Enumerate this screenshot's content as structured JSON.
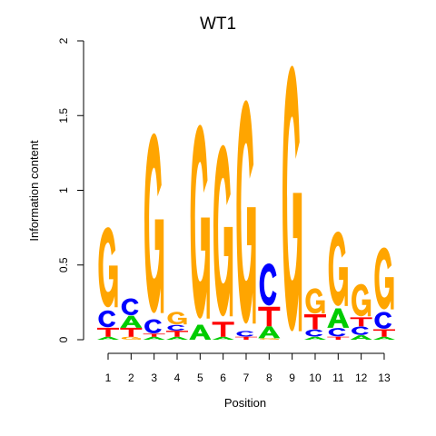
{
  "chart_data": {
    "type": "sequence-logo",
    "title": "WT1",
    "xlabel": "Position",
    "ylabel": "Information content",
    "ylim": [
      0,
      2
    ],
    "y_ticks": [
      "0",
      "0.5",
      "1",
      "1.5",
      "2"
    ],
    "x_ticks": [
      "1",
      "2",
      "3",
      "4",
      "5",
      "6",
      "7",
      "8",
      "9",
      "10",
      "11",
      "12",
      "13"
    ],
    "colors": {
      "A": "#00cc00",
      "C": "#0000ff",
      "G": "#ffa500",
      "T": "#ff0000"
    },
    "positions": [
      {
        "position": "1",
        "stack": [
          {
            "letter": "A",
            "value": 0.02
          },
          {
            "letter": "T",
            "value": 0.06
          },
          {
            "letter": "C",
            "value": 0.12
          },
          {
            "letter": "G",
            "value": 0.57
          }
        ]
      },
      {
        "position": "2",
        "stack": [
          {
            "letter": "G",
            "value": 0.02
          },
          {
            "letter": "T",
            "value": 0.06
          },
          {
            "letter": "A",
            "value": 0.08
          },
          {
            "letter": "C",
            "value": 0.12
          }
        ]
      },
      {
        "position": "3",
        "stack": [
          {
            "letter": "A",
            "value": 0.02
          },
          {
            "letter": "T",
            "value": 0.02
          },
          {
            "letter": "C",
            "value": 0.1
          },
          {
            "letter": "G",
            "value": 1.28
          }
        ]
      },
      {
        "position": "4",
        "stack": [
          {
            "letter": "A",
            "value": 0.02
          },
          {
            "letter": "T",
            "value": 0.04
          },
          {
            "letter": "C",
            "value": 0.04
          },
          {
            "letter": "G",
            "value": 0.09
          }
        ]
      },
      {
        "position": "5",
        "stack": [
          {
            "letter": "A",
            "value": 0.1
          },
          {
            "letter": "G",
            "value": 1.38
          }
        ]
      },
      {
        "position": "6",
        "stack": [
          {
            "letter": "A",
            "value": 0.02
          },
          {
            "letter": "T",
            "value": 0.1
          },
          {
            "letter": "G",
            "value": 1.22
          }
        ]
      },
      {
        "position": "7",
        "stack": [
          {
            "letter": "T",
            "value": 0.02
          },
          {
            "letter": "C",
            "value": 0.04
          },
          {
            "letter": "G",
            "value": 1.59
          }
        ]
      },
      {
        "position": "8",
        "stack": [
          {
            "letter": "G",
            "value": 0.01
          },
          {
            "letter": "A",
            "value": 0.08
          },
          {
            "letter": "T",
            "value": 0.13
          },
          {
            "letter": "C",
            "value": 0.3
          }
        ]
      },
      {
        "position": "9",
        "stack": [
          {
            "letter": "G",
            "value": 1.89
          }
        ]
      },
      {
        "position": "10",
        "stack": [
          {
            "letter": "A",
            "value": 0.02
          },
          {
            "letter": "C",
            "value": 0.05
          },
          {
            "letter": "T",
            "value": 0.1
          },
          {
            "letter": "G",
            "value": 0.18
          }
        ]
      },
      {
        "position": "11",
        "stack": [
          {
            "letter": "T",
            "value": 0.02
          },
          {
            "letter": "C",
            "value": 0.06
          },
          {
            "letter": "A",
            "value": 0.13
          },
          {
            "letter": "G",
            "value": 0.53
          }
        ]
      },
      {
        "position": "12",
        "stack": [
          {
            "letter": "A",
            "value": 0.03
          },
          {
            "letter": "C",
            "value": 0.06
          },
          {
            "letter": "T",
            "value": 0.06
          },
          {
            "letter": "G",
            "value": 0.23
          }
        ]
      },
      {
        "position": "13",
        "stack": [
          {
            "letter": "A",
            "value": 0.02
          },
          {
            "letter": "T",
            "value": 0.05
          },
          {
            "letter": "C",
            "value": 0.12
          },
          {
            "letter": "G",
            "value": 0.44
          }
        ]
      }
    ]
  }
}
